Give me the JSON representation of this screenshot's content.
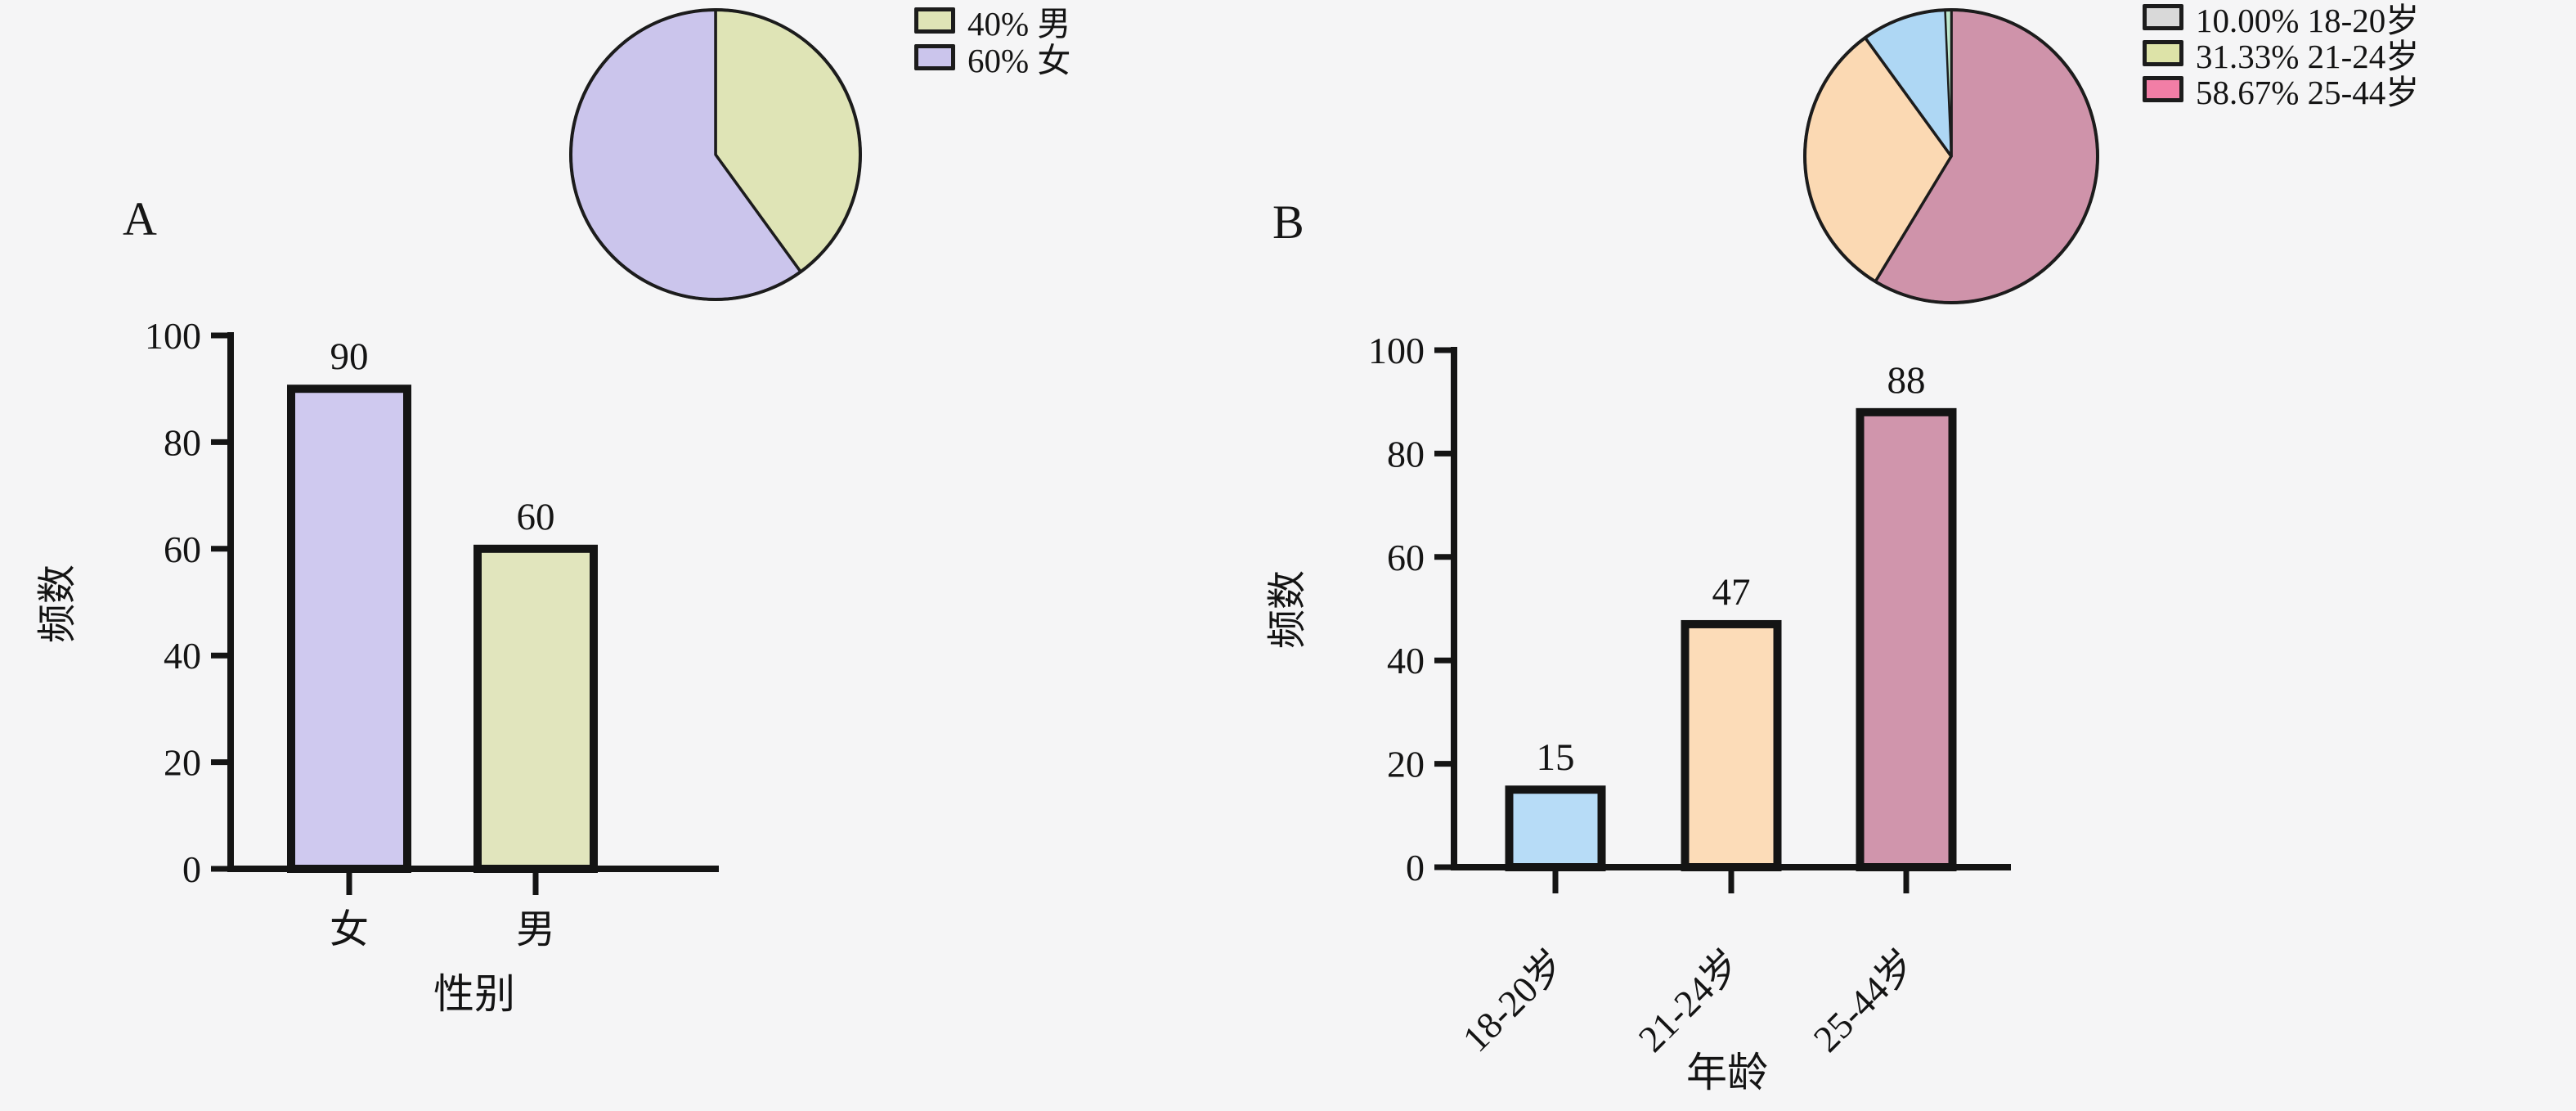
{
  "figure": {
    "background_color": "#f5f5f6",
    "ink_color": "#141414"
  },
  "panel_labels": [
    {
      "text": "A"
    },
    {
      "text": "B"
    }
  ],
  "chart_data": [
    {
      "id": "pie-A",
      "panel": "A",
      "type": "pie",
      "start_angle_deg": 0,
      "direction": "clockwise",
      "outline_color": "#1c1c1c",
      "slices": [
        {
          "label": "男",
          "value_pct": 40,
          "color": "#dfe4b6"
        },
        {
          "label": "女",
          "value_pct": 60,
          "color": "#cbc5ec"
        }
      ],
      "legend": [
        {
          "text": "40% 男",
          "swatch_color": "#dfe4b6"
        },
        {
          "text": "60% 女",
          "swatch_color": "#cbc5ec"
        }
      ]
    },
    {
      "id": "bar-A",
      "panel": "A",
      "type": "bar",
      "categories": [
        "女",
        "男"
      ],
      "values": [
        90,
        60
      ],
      "value_labels": [
        "90",
        "60"
      ],
      "bar_colors": [
        "#cfc9ef",
        "#e1e5bd"
      ],
      "bar_border_color": "#141414",
      "ylabel": "频数",
      "xlabel": "性别",
      "ylim": [
        0,
        100
      ],
      "yticks": [
        "0",
        "20",
        "40",
        "60",
        "80",
        "100"
      ],
      "xtick_rotation_deg": 0,
      "grid": false,
      "legend_position": "none"
    },
    {
      "id": "pie-B",
      "panel": "B",
      "type": "pie",
      "start_angle_deg": 0,
      "direction": "clockwise",
      "outline_color": "#1c1c1c",
      "slices": [
        {
          "label": "25-44岁",
          "value_pct": 58.67,
          "color": "#cf93aa"
        },
        {
          "label": "21-24岁",
          "value_pct": 31.33,
          "color": "#fbd9b3"
        },
        {
          "label": "18-20岁",
          "value_pct": 10.0,
          "color": "#aed7f4"
        }
      ],
      "extra_sliver": {
        "angle_deg": 2.4,
        "color": "#bde8cd"
      },
      "legend": [
        {
          "text": "10.00% 18-20岁",
          "swatch_color": "#d9d9d9"
        },
        {
          "text": "31.33% 21-24岁",
          "swatch_color": "#dde3a8"
        },
        {
          "text": "58.67% 25-44岁",
          "swatch_color": "#f27ea6"
        }
      ]
    },
    {
      "id": "bar-B",
      "panel": "B",
      "type": "bar",
      "categories": [
        "18-20岁",
        "21-24岁",
        "25-44岁"
      ],
      "values": [
        15,
        47,
        88
      ],
      "value_labels": [
        "15",
        "47",
        "88"
      ],
      "bar_colors": [
        "#b7dcf7",
        "#fcdcb8",
        "#d095ac"
      ],
      "bar_border_color": "#141414",
      "ylabel": "频数",
      "xlabel": "年龄",
      "ylim": [
        0,
        100
      ],
      "yticks": [
        "0",
        "20",
        "40",
        "60",
        "80",
        "100"
      ],
      "xtick_rotation_deg": 45,
      "grid": false,
      "legend_position": "none"
    }
  ]
}
